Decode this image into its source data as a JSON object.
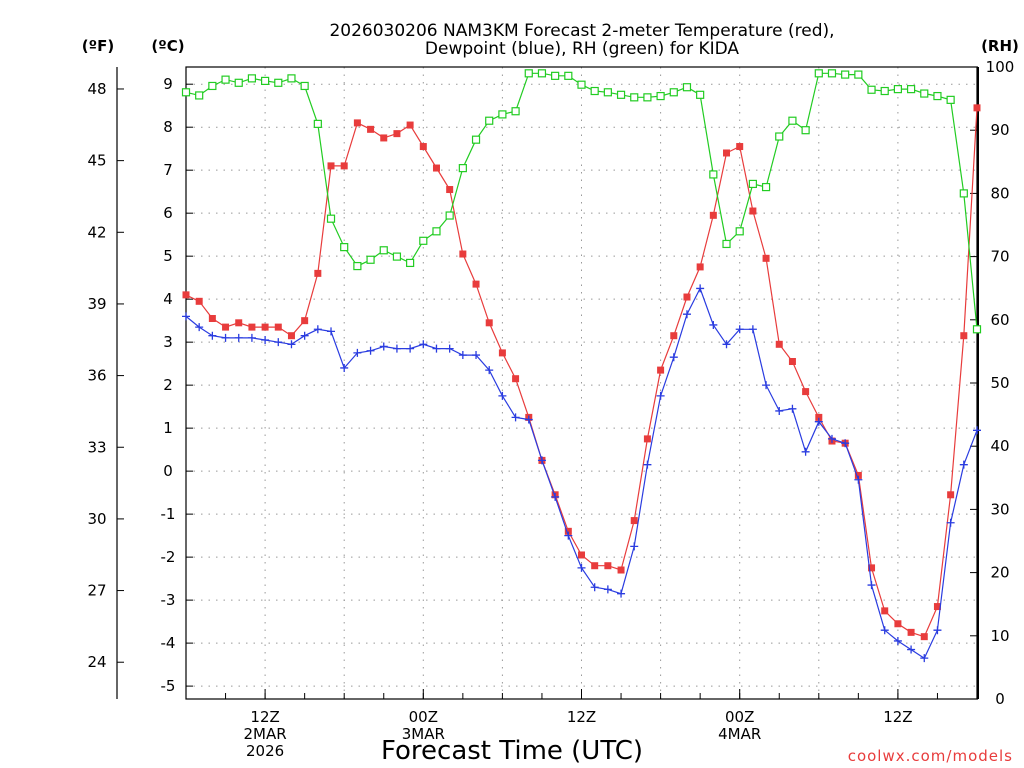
{
  "chart_data": {
    "type": "line",
    "title_line1": "2026030206 NAM3KM Forecast 2-meter Temperature (red),",
    "title_line2": "Dewpoint (blue), RH (green) for KIDA",
    "xlabel": "Forecast Time (UTC)",
    "credit": "coolwx.com/models",
    "units": {
      "fahrenheit": "(ºF)",
      "celsius": "(ºC)",
      "rh": "(RH)"
    },
    "x_unit": "forecast hour",
    "x_range": [
      0,
      60
    ],
    "y_celsius_range": [
      -5.3,
      9.4
    ],
    "y_rh_range": [
      0,
      100
    ],
    "x_ticks": [
      {
        "hour": 6,
        "line1": "12Z",
        "line2": "2MAR",
        "line3": "2026"
      },
      {
        "hour": 18,
        "line1": "00Z",
        "line2": "3MAR",
        "line3": ""
      },
      {
        "hour": 30,
        "line1": "12Z",
        "line2": "",
        "line3": ""
      },
      {
        "hour": 42,
        "line1": "00Z",
        "line2": "4MAR",
        "line3": ""
      },
      {
        "hour": 54,
        "line1": "12Z",
        "line2": "",
        "line3": ""
      }
    ],
    "celsius_ticks": [
      "9",
      "8",
      "7",
      "6",
      "5",
      "4",
      "3",
      "2",
      "1",
      "0",
      "-1",
      "-2",
      "-3",
      "-4",
      "-5"
    ],
    "fahrenheit_ticks": [
      "48",
      "45",
      "42",
      "39",
      "36",
      "33",
      "30",
      "27",
      "24"
    ],
    "rh_ticks": [
      "100",
      "90",
      "80",
      "70",
      "60",
      "50",
      "40",
      "30",
      "20",
      "10",
      "0"
    ],
    "colors": {
      "temperature": "#e83c3c",
      "dewpoint": "#2a3ce0",
      "rh": "#22cc22",
      "credit": "#e83c3c"
    },
    "series": [
      {
        "name": "Temperature",
        "unit": "C",
        "values": [
          4.1,
          3.95,
          3.55,
          3.35,
          3.45,
          3.35,
          3.35,
          3.35,
          3.15,
          3.5,
          4.6,
          7.1,
          7.1,
          8.1,
          7.95,
          7.75,
          7.85,
          8.05,
          7.55,
          7.05,
          6.55,
          5.05,
          4.35,
          3.45,
          2.75,
          2.15,
          1.25,
          0.25,
          -0.55,
          -1.4,
          -1.95,
          -2.2,
          -2.2,
          -2.3,
          -1.15,
          0.75,
          2.35,
          3.15,
          4.05,
          4.75,
          5.95,
          7.4,
          7.55,
          6.05,
          4.95,
          2.95,
          2.55,
          1.85,
          1.25,
          0.7,
          0.65,
          -0.1,
          -2.25,
          -3.25,
          -3.55,
          -3.75,
          -3.85,
          -3.15,
          -0.55,
          3.15,
          8.45
        ]
      },
      {
        "name": "Dewpoint",
        "unit": "C",
        "values": [
          3.6,
          3.35,
          3.15,
          3.1,
          3.1,
          3.1,
          3.05,
          3.0,
          2.95,
          3.15,
          3.3,
          3.25,
          2.4,
          2.75,
          2.8,
          2.9,
          2.85,
          2.85,
          2.95,
          2.85,
          2.85,
          2.7,
          2.7,
          2.35,
          1.75,
          1.25,
          1.2,
          0.25,
          -0.6,
          -1.5,
          -2.25,
          -2.7,
          -2.75,
          -2.85,
          -1.75,
          0.15,
          1.75,
          2.65,
          3.65,
          4.25,
          3.4,
          2.95,
          3.3,
          3.3,
          2.0,
          1.4,
          1.45,
          0.45,
          1.15,
          0.75,
          0.65,
          -0.2,
          -2.65,
          -3.7,
          -3.95,
          -4.15,
          -4.35,
          -3.7,
          -1.2,
          0.15,
          0.95
        ]
      },
      {
        "name": "RH",
        "unit": "%",
        "values": [
          96,
          95.5,
          97,
          98,
          97.5,
          98.2,
          97.8,
          97.5,
          98.2,
          97,
          91,
          76,
          71.5,
          68.5,
          69.5,
          71,
          70,
          69,
          72.5,
          74,
          76.5,
          84,
          88.5,
          91.5,
          92.5,
          93,
          99,
          99,
          98.6,
          98.6,
          97.2,
          96.2,
          96,
          95.6,
          95.2,
          95.2,
          95.4,
          96,
          96.8,
          95.6,
          83,
          72,
          74,
          81.5,
          81,
          89,
          91.5,
          90,
          99,
          99,
          98.8,
          98.8,
          96.4,
          96.2,
          96.5,
          96.5,
          95.8,
          95.4,
          94.8,
          80,
          58.5
        ]
      }
    ]
  }
}
